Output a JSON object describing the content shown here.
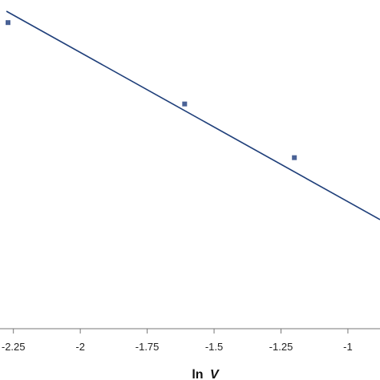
{
  "chart_data": {
    "type": "scatter",
    "xlabel_main": "ln",
    "xlabel_var": "V",
    "xlim": [
      -2.3,
      -0.88
    ],
    "ylim": [
      0,
      1
    ],
    "x_ticks": [
      -2.25,
      -2,
      -1.75,
      -1.5,
      -1.25,
      -1
    ],
    "x_tick_labels": [
      "-2.25",
      "-2",
      "-1.75",
      "-1.5",
      "-1.25",
      "-1"
    ],
    "points": [
      {
        "x": -2.3,
        "y": 0.97
      },
      {
        "x": -1.61,
        "y": 0.72
      },
      {
        "x": -1.2,
        "y": 0.555
      }
    ],
    "trendline": {
      "x1": -2.3,
      "y1": 1.0,
      "x2": -0.88,
      "y2": 0.35
    },
    "colors": {
      "point": "#4a6296",
      "line": "#1f3f7a",
      "axis": "#777777"
    }
  }
}
